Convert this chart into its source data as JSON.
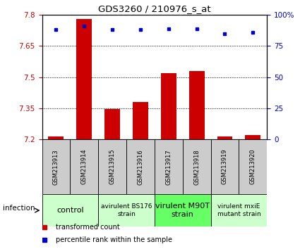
{
  "title": "GDS3260 / 210976_s_at",
  "samples": [
    "GSM213913",
    "GSM213914",
    "GSM213915",
    "GSM213916",
    "GSM213917",
    "GSM213918",
    "GSM213919",
    "GSM213920"
  ],
  "bar_values": [
    7.215,
    7.78,
    7.345,
    7.38,
    7.52,
    7.53,
    7.215,
    7.22
  ],
  "percentile_values": [
    88,
    91,
    88,
    88,
    89,
    89,
    85,
    86
  ],
  "ylim_left": [
    7.2,
    7.8
  ],
  "ylim_right": [
    0,
    100
  ],
  "yticks_left": [
    7.2,
    7.35,
    7.5,
    7.65,
    7.8
  ],
  "yticks_right": [
    0,
    25,
    50,
    75,
    100
  ],
  "bar_color": "#cc0000",
  "dot_color": "#0000cc",
  "bar_bottom": 7.2,
  "groups": [
    {
      "label": "control",
      "indices": [
        0,
        1
      ],
      "color": "#ccffcc",
      "fontsize": 8
    },
    {
      "label": "avirulent BS176\nstrain",
      "indices": [
        2,
        3
      ],
      "color": "#ccffcc",
      "fontsize": 6.5
    },
    {
      "label": "virulent M90T\nstrain",
      "indices": [
        4,
        5
      ],
      "color": "#66ff66",
      "fontsize": 8
    },
    {
      "label": "virulent mxiE\nmutant strain",
      "indices": [
        6,
        7
      ],
      "color": "#ccffcc",
      "fontsize": 6.5
    }
  ],
  "xlabel_infection": "infection",
  "legend_items": [
    {
      "color": "#cc0000",
      "label": "transformed count"
    },
    {
      "color": "#0000cc",
      "label": "percentile rank within the sample"
    }
  ],
  "tick_label_color_left": "#cc0000",
  "tick_label_color_right": "#0000cc",
  "background_color": "#ffffff",
  "sample_box_color": "#cccccc"
}
